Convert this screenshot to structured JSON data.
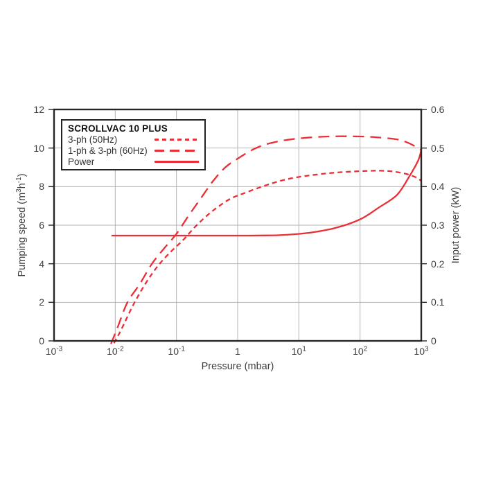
{
  "legend": {
    "title": "SCROLLVAC 10 PLUS",
    "items": [
      {
        "label": "3-ph (50Hz)",
        "line": "short-dash"
      },
      {
        "label": "1-ph & 3-ph (60Hz)",
        "line": "long-dash"
      },
      {
        "label": "Power",
        "line": "solid"
      }
    ]
  },
  "axes": {
    "x": {
      "title": "Pressure (mbar)",
      "scale": "log10",
      "ticks": [
        {
          "log": -3,
          "base": "10",
          "exp": "-3"
        },
        {
          "log": -2,
          "base": "10",
          "exp": "-2"
        },
        {
          "log": -1,
          "base": "10",
          "exp": "-1"
        },
        {
          "log": 0,
          "label": "1"
        },
        {
          "log": 1,
          "base": "10",
          "exp": "1"
        },
        {
          "log": 2,
          "base": "10",
          "exp": "2"
        },
        {
          "log": 3,
          "base": "10",
          "exp": "3"
        }
      ]
    },
    "y_left": {
      "title_segments": [
        {
          "t": "Pumping speed (m"
        },
        {
          "sup": "3"
        },
        {
          "t": "h"
        },
        {
          "sup": "-1"
        },
        {
          "t": ")"
        }
      ],
      "range": [
        0,
        12
      ],
      "ticks": [
        {
          "v": 0,
          "label": "0"
        },
        {
          "v": 2,
          "label": "2"
        },
        {
          "v": 4,
          "label": "4"
        },
        {
          "v": 6,
          "label": "6"
        },
        {
          "v": 8,
          "label": "8"
        },
        {
          "v": 10,
          "label": "10"
        },
        {
          "v": 12,
          "label": "12"
        }
      ]
    },
    "y_right": {
      "title": "Input power (kW)",
      "range": [
        0,
        0.6
      ],
      "ticks": [
        {
          "v": 0,
          "label": "0"
        },
        {
          "v": 0.1,
          "label": "0.1"
        },
        {
          "v": 0.2,
          "label": "0.2"
        },
        {
          "v": 0.3,
          "label": "0.3"
        },
        {
          "v": 0.4,
          "label": "0.4"
        },
        {
          "v": 0.5,
          "label": "0.5"
        },
        {
          "v": 0.6,
          "label": "0.6"
        }
      ]
    }
  },
  "colors": {
    "curve_red": "#ea2e36",
    "grid": "#b4b4b4",
    "axis_frame": "#262626",
    "tick_text": "#3d3d3d"
  },
  "chart_data": {
    "type": "line",
    "title": "SCROLLVAC 10 PLUS pumping speed and input power",
    "xlabel": "Pressure (mbar)",
    "x_scale": "log10",
    "x_range_mbar": [
      0.001,
      1000
    ],
    "ylabel_left": "Pumping speed (m3 h-1)",
    "ylim_left": [
      0,
      12
    ],
    "ylabel_right": "Input power (kW)",
    "ylim_right": [
      0,
      0.6
    ],
    "grid": "on",
    "legend_position": "upper-left",
    "series": [
      {
        "name": "3-ph (50Hz)",
        "axis": "left",
        "unit": "m3/h",
        "line": "short-dash",
        "color": "#ea2e36",
        "points_log10mbar_value": [
          [
            -2.0,
            0
          ],
          [
            -1.9,
            0.6
          ],
          [
            -1.7,
            1.9
          ],
          [
            -1.5,
            3.0
          ],
          [
            -1.3,
            3.9
          ],
          [
            -1.1,
            4.6
          ],
          [
            -0.9,
            5.2
          ],
          [
            -0.7,
            5.9
          ],
          [
            -0.5,
            6.5
          ],
          [
            -0.3,
            7.0
          ],
          [
            -0.1,
            7.4
          ],
          [
            0.1,
            7.65
          ],
          [
            0.4,
            8.0
          ],
          [
            0.7,
            8.3
          ],
          [
            1.0,
            8.5
          ],
          [
            1.5,
            8.7
          ],
          [
            2.0,
            8.8
          ],
          [
            2.4,
            8.82
          ],
          [
            2.7,
            8.7
          ],
          [
            2.9,
            8.5
          ],
          [
            3.0,
            8.3
          ]
        ]
      },
      {
        "name": "1-ph & 3-ph (60Hz)",
        "axis": "left",
        "unit": "m3/h",
        "line": "long-dash",
        "color": "#ea2e36",
        "points_log10mbar_value": [
          [
            -2.05,
            0
          ],
          [
            -1.95,
            0.8
          ],
          [
            -1.8,
            2.0
          ],
          [
            -1.6,
            2.95
          ],
          [
            -1.4,
            4.0
          ],
          [
            -1.2,
            4.8
          ],
          [
            -1.0,
            5.55
          ],
          [
            -0.8,
            6.5
          ],
          [
            -0.6,
            7.4
          ],
          [
            -0.4,
            8.3
          ],
          [
            -0.2,
            9.0
          ],
          [
            0.0,
            9.45
          ],
          [
            0.3,
            10.0
          ],
          [
            0.6,
            10.3
          ],
          [
            1.0,
            10.5
          ],
          [
            1.5,
            10.6
          ],
          [
            2.0,
            10.6
          ],
          [
            2.3,
            10.55
          ],
          [
            2.6,
            10.45
          ],
          [
            2.8,
            10.25
          ],
          [
            3.0,
            9.9
          ]
        ]
      },
      {
        "name": "Power",
        "axis": "right",
        "unit": "kW",
        "line": "solid",
        "color": "#ea2e36",
        "points_log10mbar_value": [
          [
            -2.06,
            0.273
          ],
          [
            -1.5,
            0.273
          ],
          [
            -1.0,
            0.273
          ],
          [
            -0.5,
            0.273
          ],
          [
            0.0,
            0.273
          ],
          [
            0.5,
            0.2735
          ],
          [
            0.8,
            0.275
          ],
          [
            1.2,
            0.281
          ],
          [
            1.6,
            0.293
          ],
          [
            2.0,
            0.315
          ],
          [
            2.3,
            0.345
          ],
          [
            2.6,
            0.378
          ],
          [
            2.8,
            0.425
          ],
          [
            2.95,
            0.468
          ],
          [
            3.0,
            0.495
          ]
        ]
      }
    ]
  }
}
